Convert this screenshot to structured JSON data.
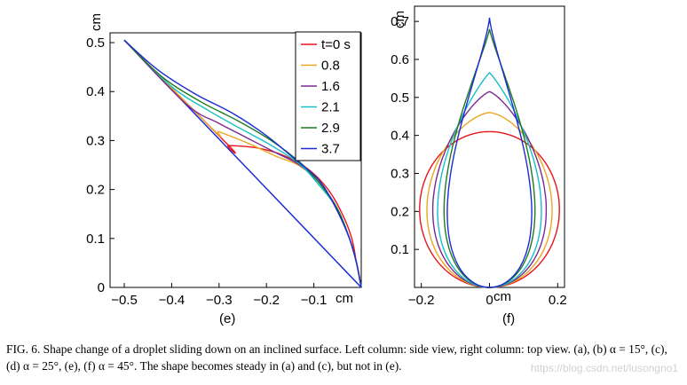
{
  "chart_data": [
    {
      "panel": "(e)",
      "view": "side view",
      "type": "line",
      "xlabel": "cm",
      "ylabel": "cm",
      "xlim": [
        -0.53,
        0.0
      ],
      "ylim": [
        0.0,
        0.52
      ],
      "xticks": [
        -0.5,
        -0.4,
        -0.3,
        -0.2,
        -0.1
      ],
      "xtick_labels": [
        "−0.5",
        "−0.4",
        "−0.3",
        "−0.2",
        "−0.1"
      ],
      "yticks": [
        0,
        0.1,
        0.2,
        0.3,
        0.4,
        0.5
      ],
      "ytick_labels": [
        "0",
        "0.1",
        "0.2",
        "0.3",
        "0.4",
        "0.5"
      ],
      "legend_title": "t=0 s",
      "legend_position": "top-right",
      "series": [
        {
          "name": "t=0 s",
          "color": "#e8141c",
          "x": [
            -0.5,
            -0.28,
            -0.28,
            -0.22,
            -0.16,
            -0.11,
            -0.07,
            -0.04,
            -0.02,
            -0.01,
            0.0
          ],
          "y": [
            0.505,
            0.29,
            0.29,
            0.285,
            0.268,
            0.24,
            0.2,
            0.15,
            0.1,
            0.05,
            0.0
          ]
        },
        {
          "name": "0.8",
          "color": "#eaa723",
          "x": [
            -0.5,
            -0.31,
            -0.3,
            -0.24,
            -0.18,
            -0.13,
            -0.08,
            -0.05,
            -0.025,
            -0.01,
            0.0
          ],
          "y": [
            0.505,
            0.32,
            0.318,
            0.295,
            0.268,
            0.248,
            0.205,
            0.155,
            0.1,
            0.05,
            0.0
          ]
        },
        {
          "name": "1.6",
          "color": "#7a2a8f",
          "x": [
            -0.5,
            -0.37,
            -0.3,
            -0.24,
            -0.18,
            -0.13,
            -0.085,
            -0.05,
            -0.025,
            -0.01,
            0.0
          ],
          "y": [
            0.505,
            0.375,
            0.335,
            0.305,
            0.275,
            0.25,
            0.21,
            0.16,
            0.1,
            0.05,
            0.0
          ]
        },
        {
          "name": "2.1",
          "color": "#19bfc6",
          "x": [
            -0.5,
            -0.4,
            -0.32,
            -0.25,
            -0.19,
            -0.13,
            -0.09,
            -0.05,
            -0.025,
            -0.01,
            0.0
          ],
          "y": [
            0.505,
            0.41,
            0.36,
            0.322,
            0.29,
            0.252,
            0.21,
            0.16,
            0.1,
            0.05,
            0.0
          ]
        },
        {
          "name": "2.9",
          "color": "#1f7a22",
          "x": [
            -0.5,
            -0.42,
            -0.34,
            -0.26,
            -0.19,
            -0.13,
            -0.09,
            -0.05,
            -0.025,
            -0.01,
            0.0
          ],
          "y": [
            0.505,
            0.43,
            0.38,
            0.34,
            0.3,
            0.256,
            0.215,
            0.16,
            0.1,
            0.05,
            0.0
          ]
        },
        {
          "name": "3.7",
          "color": "#1c2bd6",
          "x": [
            -0.5,
            -0.43,
            -0.35,
            -0.27,
            -0.2,
            -0.14,
            -0.09,
            -0.055,
            -0.025,
            -0.01,
            0.0
          ],
          "y": [
            0.505,
            0.445,
            0.395,
            0.355,
            0.31,
            0.262,
            0.22,
            0.165,
            0.1,
            0.05,
            0.0
          ]
        }
      ],
      "contact_line": {
        "x": [
          -0.5,
          0.0
        ],
        "y": [
          0.505,
          0.0
        ]
      }
    },
    {
      "panel": "(f)",
      "view": "top view",
      "type": "line",
      "xlabel": "cm",
      "ylabel": "cm",
      "xlim": [
        -0.22,
        0.22
      ],
      "ylim": [
        0.0,
        0.74
      ],
      "xticks": [
        -0.2,
        0,
        0.2
      ],
      "xtick_labels": [
        "−0.2",
        "0",
        "0.2"
      ],
      "yticks": [
        0.1,
        0.2,
        0.3,
        0.4,
        0.5,
        0.6,
        0.7
      ],
      "ytick_labels": [
        "0.1",
        "0.2",
        "0.3",
        "0.4",
        "0.5",
        "0.6",
        "0.7"
      ],
      "series": [
        {
          "name": "t=0 s",
          "color": "#e8141c",
          "w": 0.205,
          "apex": 0.41,
          "k": 1.0
        },
        {
          "name": "0.8",
          "color": "#eaa723",
          "w": 0.2,
          "apex": 0.46,
          "k": 1.3
        },
        {
          "name": "1.6",
          "color": "#7a2a8f",
          "w": 0.195,
          "apex": 0.515,
          "k": 1.6
        },
        {
          "name": "2.1",
          "color": "#19bfc6",
          "w": 0.19,
          "apex": 0.565,
          "k": 1.9
        },
        {
          "name": "2.9",
          "color": "#1f7a22",
          "w": 0.185,
          "apex": 0.68,
          "k": 2.5
        },
        {
          "name": "3.7",
          "color": "#1c2bd6",
          "w": 0.18,
          "apex": 0.71,
          "k": 2.8
        }
      ]
    }
  ],
  "legend": {
    "items": [
      "t=0 s",
      "0.8",
      "1.6",
      "2.1",
      "2.9",
      "3.7"
    ]
  },
  "caption": "FIG. 6.  Shape change of a droplet sliding down on an inclined surface. Left column: side view, right column: top view. (a), (b) α = 15°, (c), (d) α = 25°, (e), (f) α = 45°. The shape becomes steady in (a) and (c), but not in (e).",
  "watermark": "https://blog.csdn.net/lusongno1"
}
